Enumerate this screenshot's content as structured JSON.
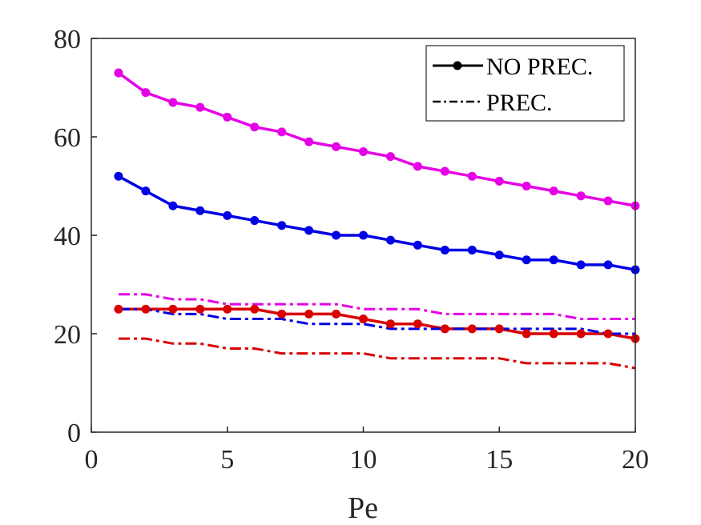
{
  "chart_data": {
    "type": "line",
    "title": "",
    "xlabel": "Pe",
    "ylabel": "",
    "xlim": [
      0,
      20
    ],
    "ylim": [
      0,
      80
    ],
    "xticks": [
      0,
      5,
      10,
      15,
      20
    ],
    "yticks": [
      0,
      20,
      40,
      60,
      80
    ],
    "grid": false,
    "legend_position": "top-right",
    "legend": [
      {
        "label": "NO PREC.",
        "style": "solid-marker"
      },
      {
        "label": "PREC.",
        "style": "dash-dot"
      }
    ],
    "x": [
      1,
      2,
      3,
      4,
      5,
      6,
      7,
      8,
      9,
      10,
      11,
      12,
      13,
      14,
      15,
      16,
      17,
      18,
      19,
      20
    ],
    "series": [
      {
        "name": "magenta NO PREC.",
        "color": "#e600e6",
        "style": "solid-marker",
        "values": [
          73,
          69,
          67,
          66,
          64,
          62,
          61,
          59,
          58,
          57,
          56,
          54,
          53,
          52,
          51,
          50,
          49,
          48,
          47,
          46
        ]
      },
      {
        "name": "blue NO PREC.",
        "color": "#0000e6",
        "style": "solid-marker",
        "values": [
          52,
          49,
          46,
          45,
          44,
          43,
          42,
          41,
          40,
          40,
          39,
          38,
          37,
          37,
          36,
          35,
          35,
          34,
          34,
          33
        ]
      },
      {
        "name": "red NO PREC.",
        "color": "#d90000",
        "style": "solid-marker",
        "values": [
          25,
          25,
          25,
          25,
          25,
          25,
          24,
          24,
          24,
          23,
          22,
          22,
          21,
          21,
          21,
          20,
          20,
          20,
          20,
          19
        ]
      },
      {
        "name": "magenta PREC.",
        "color": "#e600e6",
        "style": "dash-dot",
        "values": [
          28,
          28,
          27,
          27,
          26,
          26,
          26,
          26,
          26,
          25,
          25,
          25,
          24,
          24,
          24,
          24,
          24,
          23,
          23,
          23
        ]
      },
      {
        "name": "blue PREC.",
        "color": "#0000e6",
        "style": "dash-dot",
        "values": [
          25,
          25,
          24,
          24,
          23,
          23,
          23,
          22,
          22,
          22,
          21,
          21,
          21,
          21,
          21,
          21,
          21,
          21,
          20,
          20
        ]
      },
      {
        "name": "red PREC.",
        "color": "#d90000",
        "style": "dash-dot",
        "values": [
          19,
          19,
          18,
          18,
          17,
          17,
          16,
          16,
          16,
          16,
          15,
          15,
          15,
          15,
          15,
          14,
          14,
          14,
          14,
          13
        ]
      }
    ]
  }
}
